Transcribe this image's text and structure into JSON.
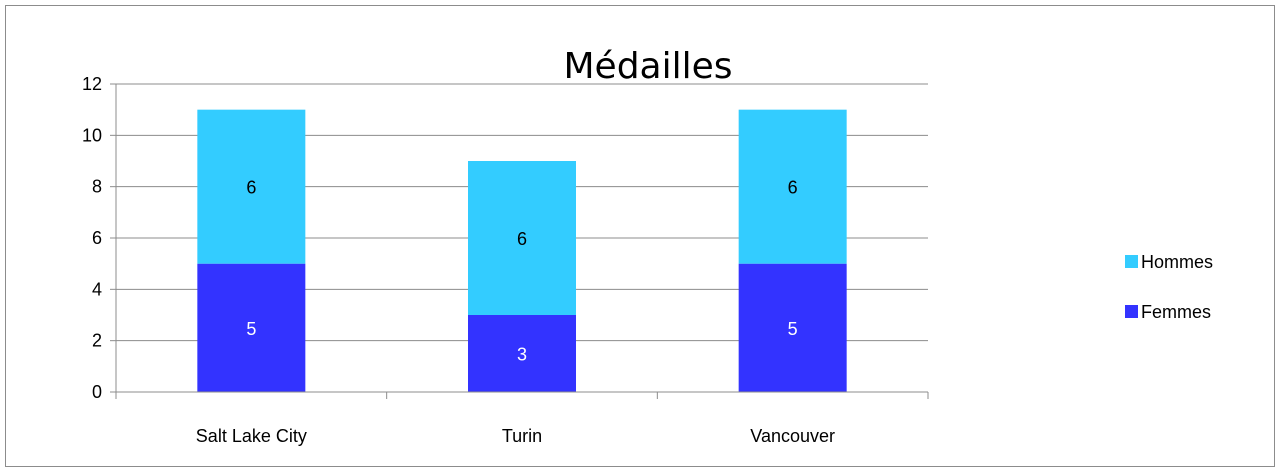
{
  "chart_data": {
    "type": "bar",
    "stacked": true,
    "title": "Médailles",
    "categories": [
      "Salt Lake City",
      "Turin",
      "Vancouver"
    ],
    "series": [
      {
        "name": "Femmes",
        "values": [
          5,
          3,
          5
        ],
        "color": "#3333ff",
        "label_color": "#ffffff"
      },
      {
        "name": "Hommes",
        "values": [
          6,
          6,
          6
        ],
        "color": "#33ccff",
        "label_color": "#000000"
      }
    ],
    "ylim": [
      0,
      12
    ],
    "yticks": [
      "0",
      "2",
      "4",
      "6",
      "8",
      "10",
      "12"
    ],
    "grid": true,
    "legend_position": "right",
    "legend_order": [
      "Hommes",
      "Femmes"
    ]
  }
}
